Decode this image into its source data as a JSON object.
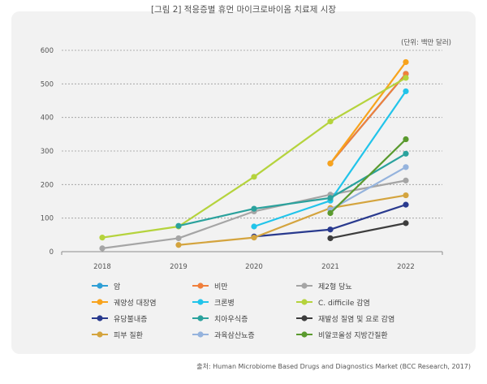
{
  "title": "[그림 2] 적응증별 휴먼 마이크로바이옴 치료제 시장",
  "unit": "(단위: 백만 달러)",
  "source": "출처: Human Microbiome Based Drugs and Diagnostics Market (BCC Research, 2017)",
  "chart_data": {
    "type": "line",
    "x": [
      "2018",
      "2019",
      "2020",
      "2021",
      "2022"
    ],
    "ylim": [
      0,
      600
    ],
    "yticks": [
      0,
      100,
      200,
      300,
      400,
      500,
      600
    ],
    "grid": "horizontal dashed",
    "legend_position": "bottom",
    "series": [
      {
        "name": "암",
        "color": "#2e9fd6",
        "values": [
          null,
          null,
          null,
          263,
          530
        ]
      },
      {
        "name": "비만",
        "color": "#f07f3c",
        "values": [
          null,
          null,
          null,
          263,
          530
        ]
      },
      {
        "name": "제2형 당뇨",
        "color": "#a5a5a5",
        "values": [
          10,
          40,
          120,
          170,
          212
        ]
      },
      {
        "name": "궤양성 대장염",
        "color": "#f8a31c",
        "values": [
          null,
          null,
          null,
          263,
          565
        ]
      },
      {
        "name": "크론병",
        "color": "#21c4ea",
        "values": [
          null,
          null,
          75,
          152,
          478
        ]
      },
      {
        "name": "C. difficile 감염",
        "color": "#b5d33d",
        "values": [
          42,
          75,
          223,
          388,
          518
        ]
      },
      {
        "name": "유당불내증",
        "color": "#293a8e",
        "values": [
          null,
          null,
          45,
          66,
          140
        ]
      },
      {
        "name": "치아우식증",
        "color": "#2ba29d",
        "values": [
          null,
          77,
          128,
          160,
          292
        ]
      },
      {
        "name": "재발성 질염 및 요로 감염",
        "color": "#3d3d3d",
        "values": [
          null,
          null,
          null,
          40,
          85
        ]
      },
      {
        "name": "피부 질환",
        "color": "#d4a43e",
        "values": [
          null,
          20,
          42,
          130,
          168
        ]
      },
      {
        "name": "과육삼산뇨증",
        "color": "#95b3dd",
        "values": [
          null,
          null,
          null,
          125,
          252
        ]
      },
      {
        "name": "비알코올성 지방간질환",
        "color": "#5a9a2e",
        "values": [
          null,
          null,
          null,
          115,
          335
        ]
      }
    ]
  }
}
